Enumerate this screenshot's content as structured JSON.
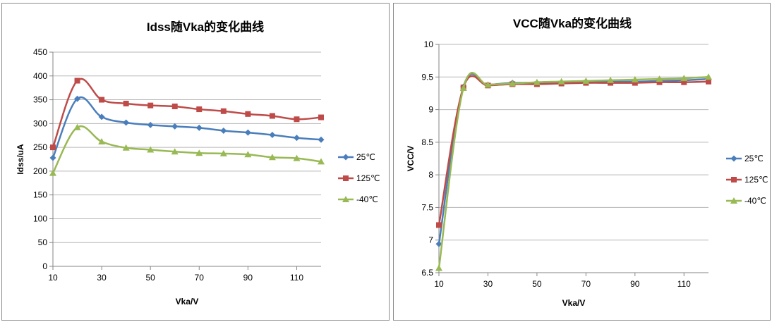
{
  "chart_data": [
    {
      "type": "line",
      "title": "Idss随Vka的变化曲线",
      "xlabel": "Vka/V",
      "ylabel": "Idss/uA",
      "xlim": [
        10,
        120
      ],
      "ylim": [
        0,
        450
      ],
      "xticks": [
        10,
        30,
        50,
        70,
        90,
        110
      ],
      "yticks": [
        0,
        50,
        100,
        150,
        200,
        250,
        300,
        350,
        400,
        450
      ],
      "x": [
        10,
        20,
        30,
        40,
        50,
        60,
        70,
        80,
        90,
        100,
        110,
        120
      ],
      "legend_position": "right",
      "grid": "horizontal",
      "series": [
        {
          "name": "25℃",
          "color": "#4a7ebb",
          "marker": "diamond",
          "values": [
            228,
            352,
            314,
            302,
            297,
            294,
            291,
            285,
            281,
            276,
            270,
            266
          ]
        },
        {
          "name": "125℃",
          "color": "#be4b48",
          "marker": "square",
          "values": [
            250,
            390,
            350,
            342,
            338,
            336,
            330,
            326,
            320,
            316,
            309,
            313
          ]
        },
        {
          "name": "-40℃",
          "color": "#98b954",
          "marker": "triangle",
          "values": [
            196,
            292,
            262,
            249,
            245,
            241,
            238,
            237,
            235,
            229,
            227,
            220
          ]
        }
      ]
    },
    {
      "type": "line",
      "title": "VCC随Vka的变化曲线",
      "xlabel": "Vka/V",
      "ylabel": "VCC/V",
      "xlim": [
        10,
        120
      ],
      "ylim": [
        6.5,
        10
      ],
      "xticks": [
        10,
        30,
        50,
        70,
        90,
        110
      ],
      "yticks": [
        6.5,
        7,
        7.5,
        8,
        8.5,
        9,
        9.5,
        10
      ],
      "x": [
        10,
        20,
        30,
        40,
        50,
        60,
        70,
        80,
        90,
        100,
        110,
        120
      ],
      "legend_position": "right",
      "grid": "horizontal",
      "series": [
        {
          "name": "25℃",
          "color": "#4a7ebb",
          "marker": "diamond",
          "values": [
            6.94,
            9.35,
            9.38,
            9.41,
            9.41,
            9.42,
            9.43,
            9.43,
            9.43,
            9.44,
            9.45,
            9.47
          ]
        },
        {
          "name": "125℃",
          "color": "#be4b48",
          "marker": "square",
          "values": [
            7.23,
            9.34,
            9.37,
            9.39,
            9.39,
            9.4,
            9.41,
            9.41,
            9.41,
            9.42,
            9.42,
            9.43
          ]
        },
        {
          "name": "-40℃",
          "color": "#98b954",
          "marker": "triangle",
          "values": [
            6.57,
            9.33,
            9.38,
            9.4,
            9.42,
            9.43,
            9.44,
            9.45,
            9.46,
            9.47,
            9.48,
            9.5
          ]
        }
      ]
    }
  ]
}
